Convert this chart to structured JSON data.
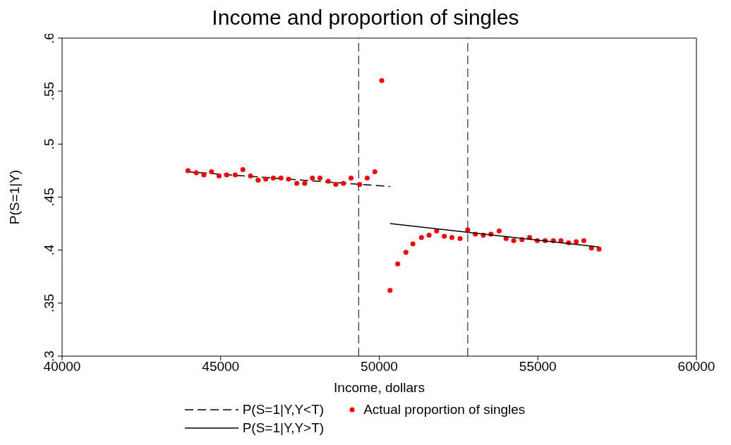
{
  "chart_data": {
    "type": "scatter",
    "title": "Income and proportion of singles",
    "xlabel": "Income, dollars",
    "ylabel": "P(S=1|Y)",
    "xlim": [
      40000,
      60000
    ],
    "xticks": [
      40000,
      45000,
      50000,
      55000,
      60000
    ],
    "ylim": [
      0.3,
      0.6
    ],
    "yticks": [
      {
        "value": 0.3,
        "label": ".3"
      },
      {
        "value": 0.35,
        "label": ".35"
      },
      {
        "value": 0.4,
        "label": ".4"
      },
      {
        "value": 0.45,
        "label": ".45"
      },
      {
        "value": 0.5,
        "label": ".5"
      },
      {
        "value": 0.55,
        "label": ".55"
      },
      {
        "value": 0.6,
        "label": ".6"
      }
    ],
    "grid": false,
    "legend": "bottom",
    "ref_lines": [
      {
        "axis": "x",
        "value": 49350,
        "color": "#000000",
        "line_style": "dashed"
      },
      {
        "axis": "x",
        "value": 52790,
        "color": "#000000",
        "line_style": "dashed"
      }
    ],
    "series": [
      {
        "name": "P(S=1|Y,Y<T)",
        "type": "line",
        "color": "#000000",
        "line_style": "dashed",
        "marker": "none",
        "x": [
          43900,
          50340
        ],
        "values": [
          0.474,
          0.46
        ]
      },
      {
        "name": "Actual proportion of singles",
        "type": "scatter",
        "color": "#ff0000",
        "marker": "circle",
        "x": [
          43970,
          44230,
          44470,
          44710,
          44950,
          45190,
          45460,
          45700,
          45940,
          46180,
          46420,
          46660,
          46900,
          47140,
          47400,
          47650,
          47890,
          48130,
          48390,
          48630,
          48870,
          49110,
          49380,
          49620,
          49860,
          50080,
          50340,
          50580,
          50840,
          51060,
          51330,
          51570,
          51810,
          52050,
          52290,
          52550,
          52790,
          53030,
          53280,
          53520,
          53780,
          54000,
          54240,
          54500,
          54740,
          54980,
          55230,
          55490,
          55730,
          55970,
          56210,
          56450,
          56690,
          56930
        ],
        "values": [
          0.475,
          0.473,
          0.471,
          0.474,
          0.47,
          0.471,
          0.471,
          0.476,
          0.47,
          0.466,
          0.467,
          0.468,
          0.468,
          0.467,
          0.463,
          0.463,
          0.468,
          0.468,
          0.465,
          0.462,
          0.463,
          0.468,
          0.462,
          0.468,
          0.474,
          0.56,
          0.362,
          0.387,
          0.398,
          0.406,
          0.412,
          0.414,
          0.418,
          0.413,
          0.412,
          0.411,
          0.419,
          0.415,
          0.414,
          0.415,
          0.418,
          0.411,
          0.409,
          0.41,
          0.412,
          0.409,
          0.409,
          0.409,
          0.409,
          0.407,
          0.408,
          0.409,
          0.402,
          0.401
        ]
      },
      {
        "name": "P(S=1|Y,Y>T)",
        "type": "line",
        "color": "#000000",
        "line_style": "solid",
        "marker": "none",
        "x": [
          50340,
          56930
        ],
        "values": [
          0.425,
          0.403
        ]
      }
    ]
  }
}
